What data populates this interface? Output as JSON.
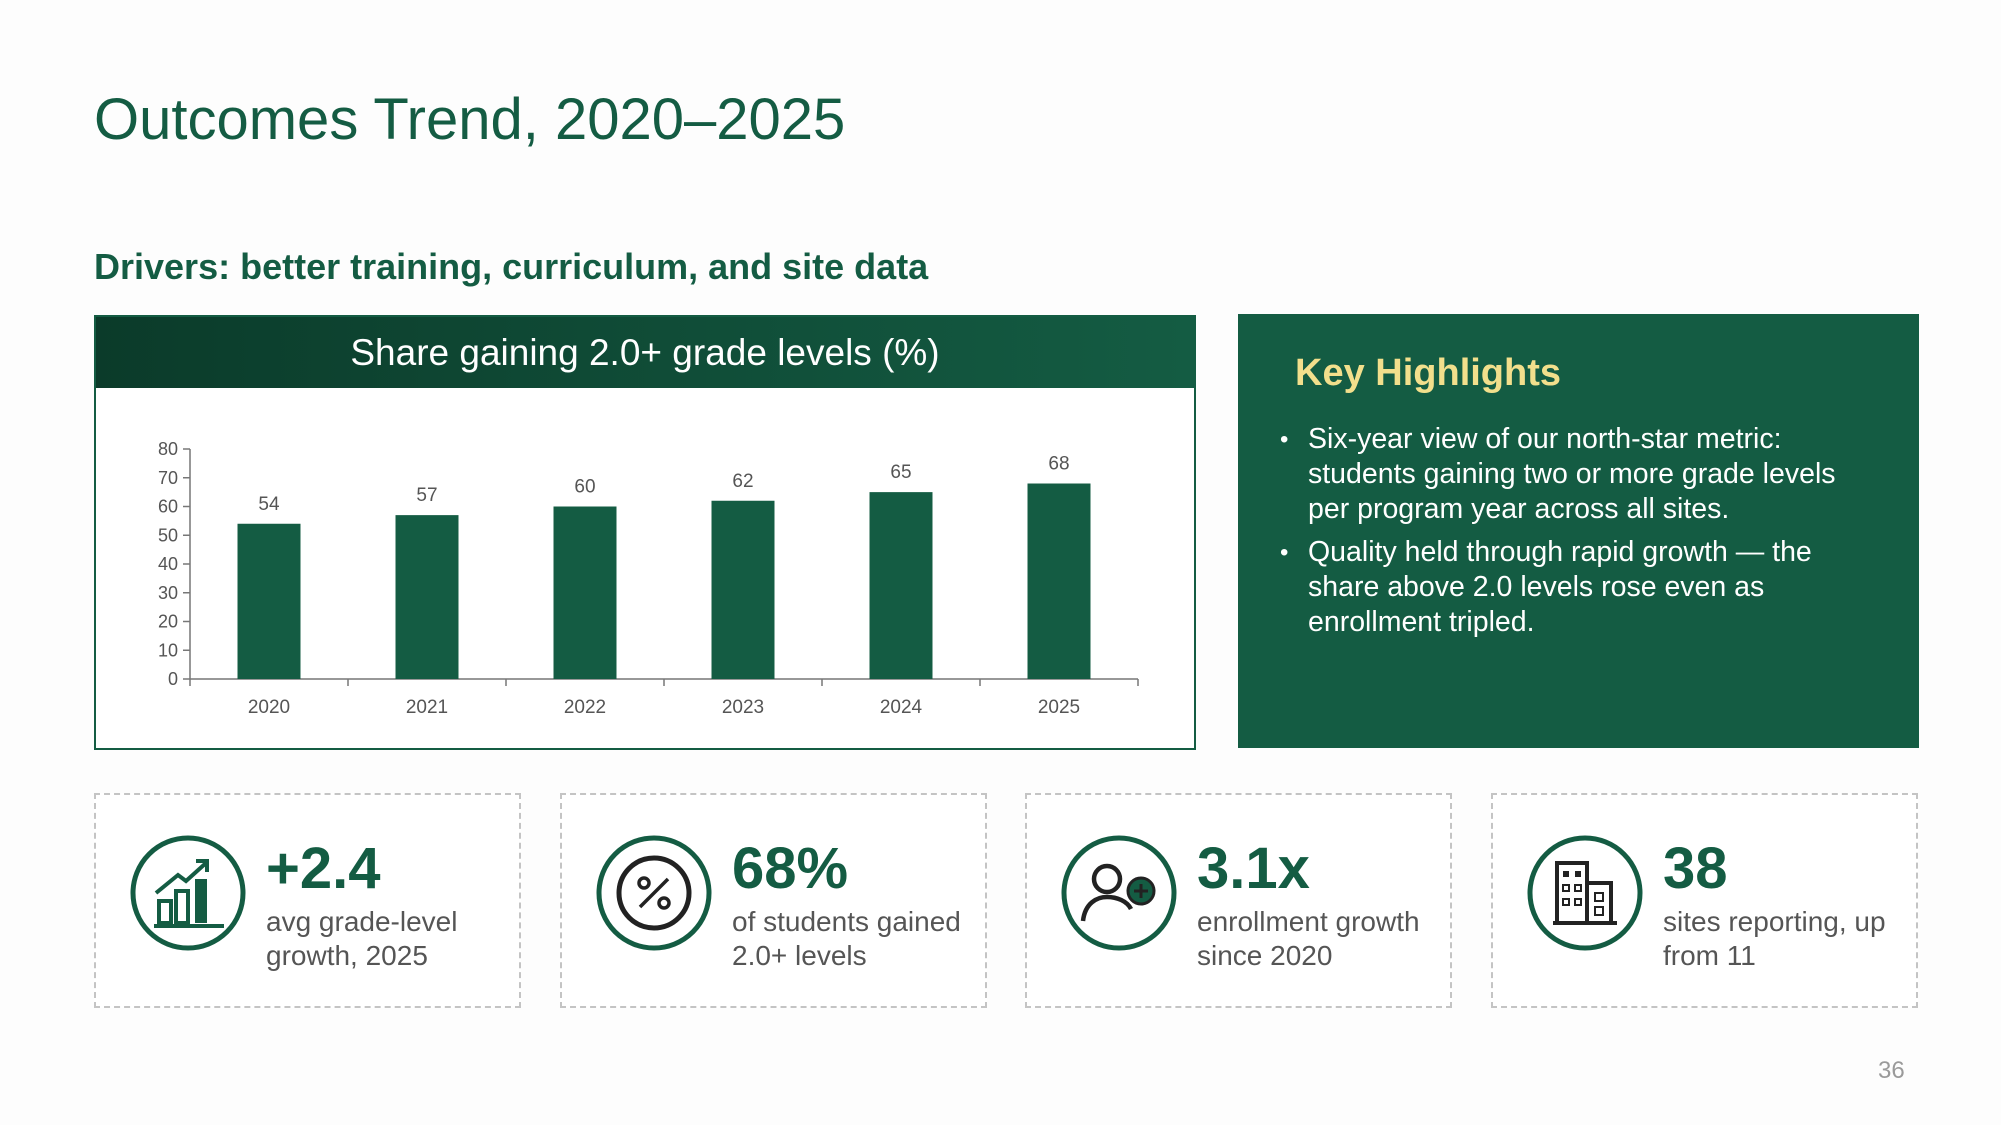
{
  "slide": {
    "title": "Outcomes Trend, 2020–2025",
    "subtitle": "Drivers: better training, curriculum, and site data",
    "page_number": "36"
  },
  "chart_header": "Share gaining 2.0+ grade levels (%)",
  "chart_data": {
    "type": "bar",
    "title": "Share gaining 2.0+ grade levels (%)",
    "categories": [
      "2020",
      "2021",
      "2022",
      "2023",
      "2024",
      "2025"
    ],
    "values": [
      54,
      57,
      60,
      62,
      65,
      68
    ],
    "ylim": [
      0,
      80
    ],
    "yticks": [
      0,
      10,
      20,
      30,
      40,
      50,
      60,
      70,
      80
    ],
    "xlabel": "",
    "ylabel": "",
    "data_labels": true,
    "grid": false,
    "bar_color": "#145c43"
  },
  "highlights": {
    "title": "Key Highlights",
    "items": [
      "Six-year view of our north-star metric: students gaining two or more grade levels per program year across all sites.",
      "Quality held through rapid growth — the share above 2.0 levels rose even as enrollment tripled."
    ]
  },
  "stats": [
    {
      "icon": "growth-chart-icon",
      "value": "+2.4",
      "label": "avg grade-level growth, 2025"
    },
    {
      "icon": "percent-icon",
      "value": "68%",
      "label": "of students gained 2.0+ levels"
    },
    {
      "icon": "user-add-icon",
      "value": "3.1x",
      "label": "enrollment growth since 2020"
    },
    {
      "icon": "building-icon",
      "value": "38",
      "label": "sites reporting, up from 11"
    }
  ],
  "colors": {
    "accent": "#145c43",
    "highlight_title": "#f2df8c"
  }
}
